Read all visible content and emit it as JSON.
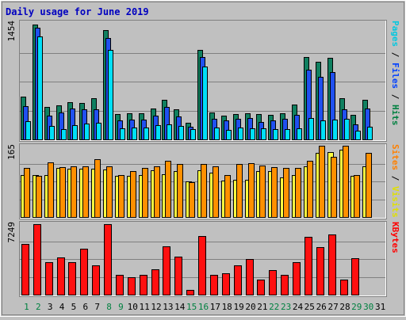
{
  "chart_data": {
    "type": "bar",
    "title": "Daily usage for June 2019",
    "days": [
      "1",
      "2",
      "3",
      "4",
      "5",
      "6",
      "7",
      "8",
      "9",
      "10",
      "11",
      "12",
      "13",
      "14",
      "15",
      "16",
      "17",
      "18",
      "19",
      "20",
      "21",
      "22",
      "23",
      "24",
      "25",
      "26",
      "27",
      "28",
      "29",
      "30",
      "31"
    ],
    "weekend_days": [
      "1",
      "2",
      "8",
      "9",
      "15",
      "16",
      "22",
      "23",
      "29",
      "30"
    ],
    "panels": [
      {
        "id": "hits",
        "max_label": "1454",
        "ymax": 1454,
        "legend": [
          {
            "text": "Pages",
            "color": "#00c8e0"
          },
          {
            "text": " / ",
            "color": "#000000"
          },
          {
            "text": "Files",
            "color": "#0040ff"
          },
          {
            "text": " / ",
            "color": "#000000"
          },
          {
            "text": "Hits",
            "color": "#008040"
          }
        ],
        "series": [
          {
            "name": "Hits",
            "color": "#108060",
            "values": [
              540,
              1440,
              410,
              430,
              470,
              460,
              520,
              1370,
              320,
              330,
              330,
              390,
              500,
              380,
              210,
              1130,
              340,
              300,
              320,
              330,
              320,
              310,
              330,
              440,
              1040,
              980,
              1030,
              520,
              310,
              500,
              0
            ]
          },
          {
            "name": "Files",
            "color": "#2050f0",
            "values": [
              420,
              1400,
              300,
              340,
              390,
              380,
              380,
              1270,
              240,
              250,
              250,
              300,
              410,
              290,
              160,
              1040,
              260,
              240,
              260,
              270,
              220,
              240,
              260,
              310,
              880,
              790,
              850,
              380,
              190,
              390,
              0
            ]
          },
          {
            "name": "Pages",
            "color": "#00e0f8",
            "values": [
              230,
              1290,
              170,
              130,
              180,
              200,
              210,
              1130,
              140,
              150,
              150,
              180,
              190,
              170,
              130,
              920,
              150,
              120,
              150,
              140,
              140,
              130,
              130,
              140,
              270,
              240,
              250,
              260,
              110,
              160,
              0
            ]
          }
        ]
      },
      {
        "id": "visits",
        "max_label": "165",
        "ymax": 165,
        "legend": [
          {
            "text": "Sites",
            "color": "#ff8000"
          },
          {
            "text": " / ",
            "color": "#000000"
          },
          {
            "text": "Visits",
            "color": "#e0e000"
          }
        ],
        "series": [
          {
            "name": "Visits",
            "color": "#ffff40",
            "values": [
              97,
              98,
              97,
              113,
              112,
              112,
              111,
              110,
              96,
              96,
              98,
              108,
              99,
              106,
              83,
              108,
              103,
              84,
              87,
              87,
              107,
              106,
              92,
              97,
              117,
              149,
              150,
              155,
              95,
              118,
              0
            ]
          },
          {
            "name": "Sites",
            "color": "#ff9000",
            "values": [
              114,
              96,
              127,
              115,
              118,
              118,
              133,
              117,
              98,
              106,
              113,
              118,
              130,
              123,
              81,
              122,
              118,
              98,
              122,
              124,
              120,
              116,
              114,
              114,
              131,
              165,
              140,
              165,
              98,
              149,
              0
            ]
          }
        ]
      },
      {
        "id": "kbytes",
        "max_label": "7249",
        "ymax": 7249,
        "legend": [
          {
            "text": "KBytes",
            "color": "#ff0000"
          }
        ],
        "series": [
          {
            "name": "KBytes",
            "color": "#ff1010",
            "values": [
              5170,
              7200,
              3300,
              3800,
              3300,
              4700,
              3000,
              7200,
              1980,
              1800,
              1980,
              2600,
              4900,
              3850,
              500,
              5950,
              1980,
              2200,
              3000,
              3600,
              1500,
              2500,
              1980,
              3300,
              5900,
              4800,
              6100,
              1500,
              3700,
              0,
              0
            ]
          }
        ]
      }
    ]
  }
}
